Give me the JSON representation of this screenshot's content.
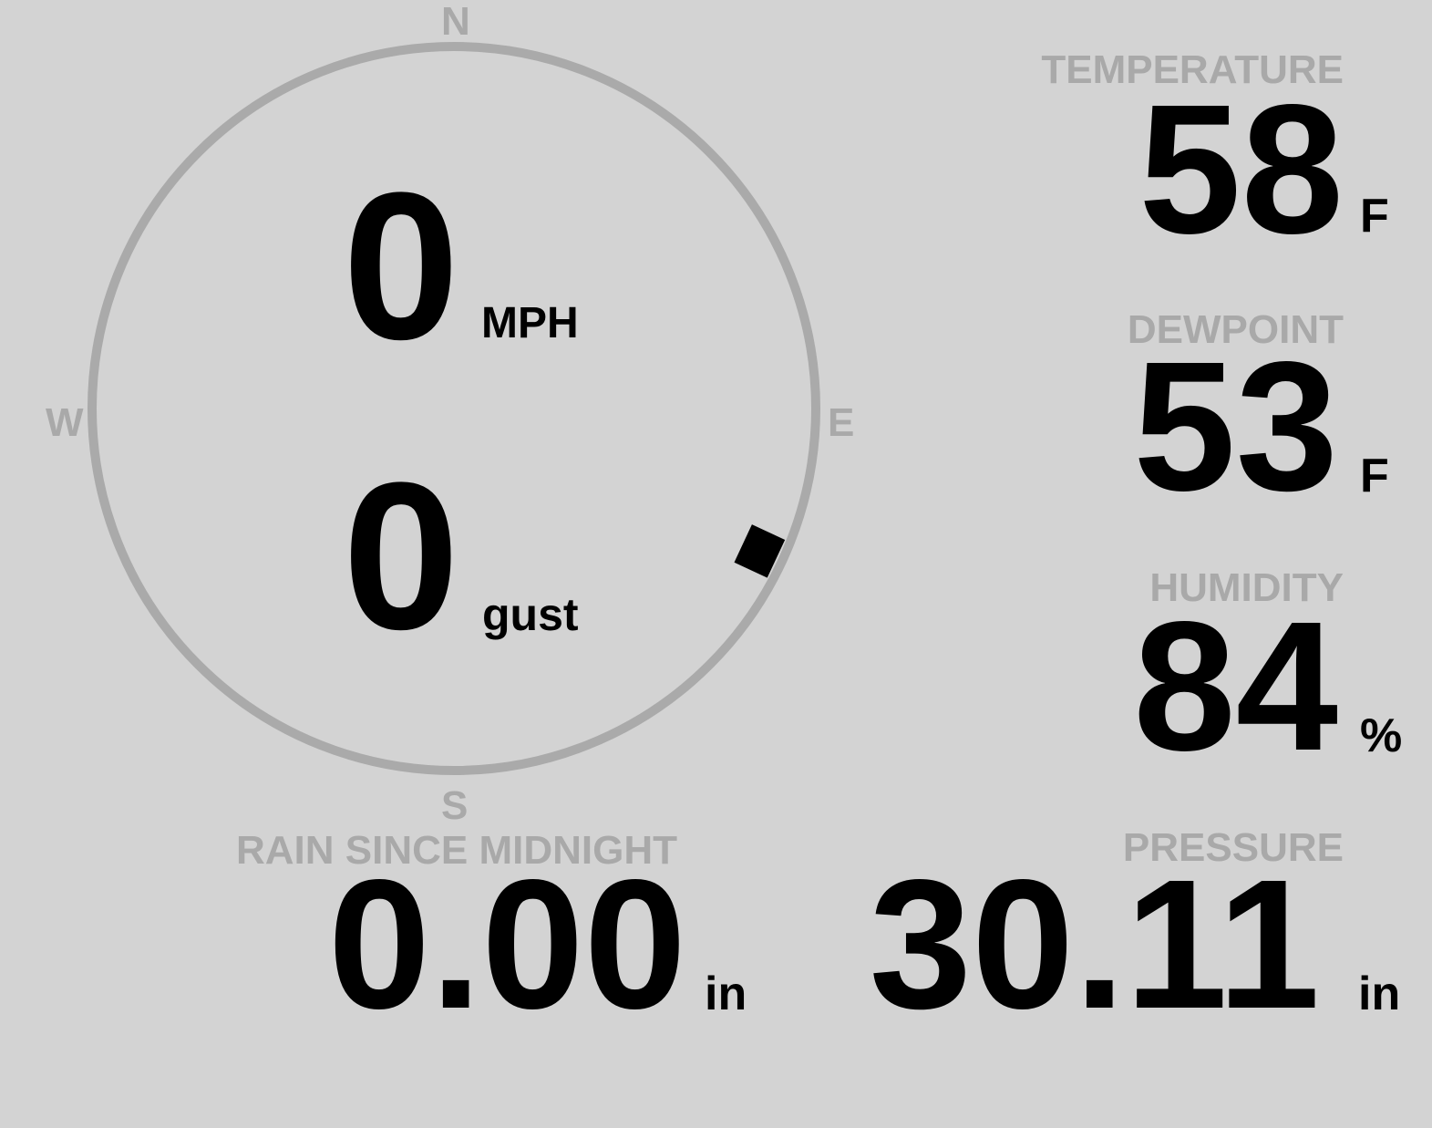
{
  "wind": {
    "speed": "0",
    "speed_unit": "MPH",
    "gust": "0",
    "gust_unit": "gust",
    "direction_deg": 115,
    "compass": {
      "n": "N",
      "e": "E",
      "s": "S",
      "w": "W"
    }
  },
  "temperature": {
    "label": "TEMPERATURE",
    "value": "58",
    "unit": "F"
  },
  "dewpoint": {
    "label": "DEWPOINT",
    "value": "53",
    "unit": "F"
  },
  "humidity": {
    "label": "HUMIDITY",
    "value": "84",
    "unit": "%"
  },
  "rain": {
    "label": "RAIN SINCE MIDNIGHT",
    "value": "0.00",
    "unit": "in"
  },
  "pressure": {
    "label": "PRESSURE",
    "value": "30.11",
    "unit": "in"
  },
  "colors": {
    "background": "#d3d3d3",
    "label": "#a9a9a9",
    "value": "#000000"
  }
}
